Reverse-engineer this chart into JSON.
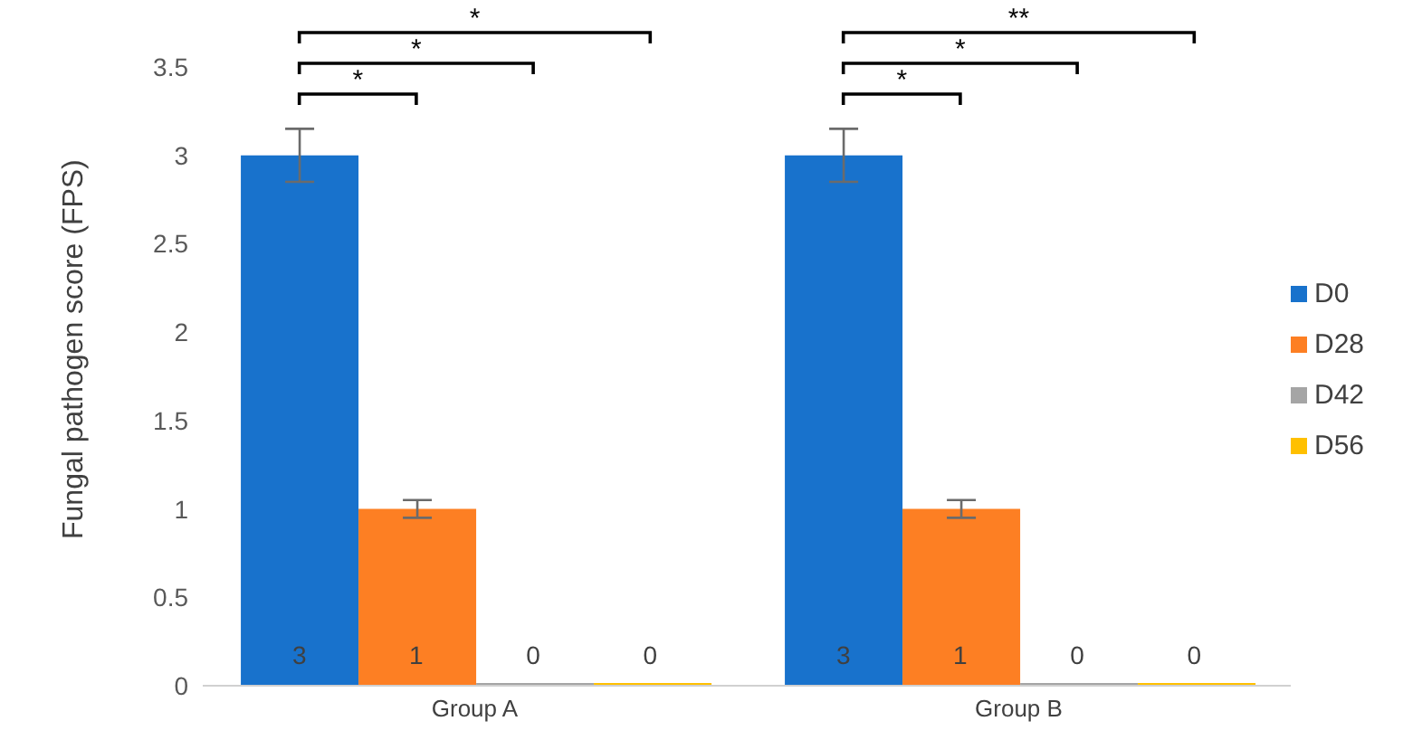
{
  "chart_data": {
    "type": "bar",
    "ylabel": "Fungal pathogen score (FPS)",
    "categories": [
      "Group A",
      "Group B"
    ],
    "series": [
      {
        "name": "D0",
        "color": "#1872cc",
        "values": [
          3,
          3
        ],
        "errors": [
          0.15,
          0.15
        ]
      },
      {
        "name": "D28",
        "color": "#fd7f23",
        "values": [
          1,
          1
        ],
        "errors": [
          0.05,
          0.05
        ]
      },
      {
        "name": "D42",
        "color": "#a5a5a5",
        "values": [
          0,
          0
        ]
      },
      {
        "name": "D56",
        "color": "#ffc000",
        "values": [
          0,
          0
        ]
      }
    ],
    "ylim": [
      0,
      3.5
    ],
    "yticks": [
      0,
      0.5,
      1,
      1.5,
      2,
      2.5,
      3,
      3.5
    ],
    "grid": false,
    "legend": "right",
    "data_labels": true,
    "annotations": [
      "*",
      "*",
      "*",
      "*",
      "*",
      "**"
    ]
  }
}
